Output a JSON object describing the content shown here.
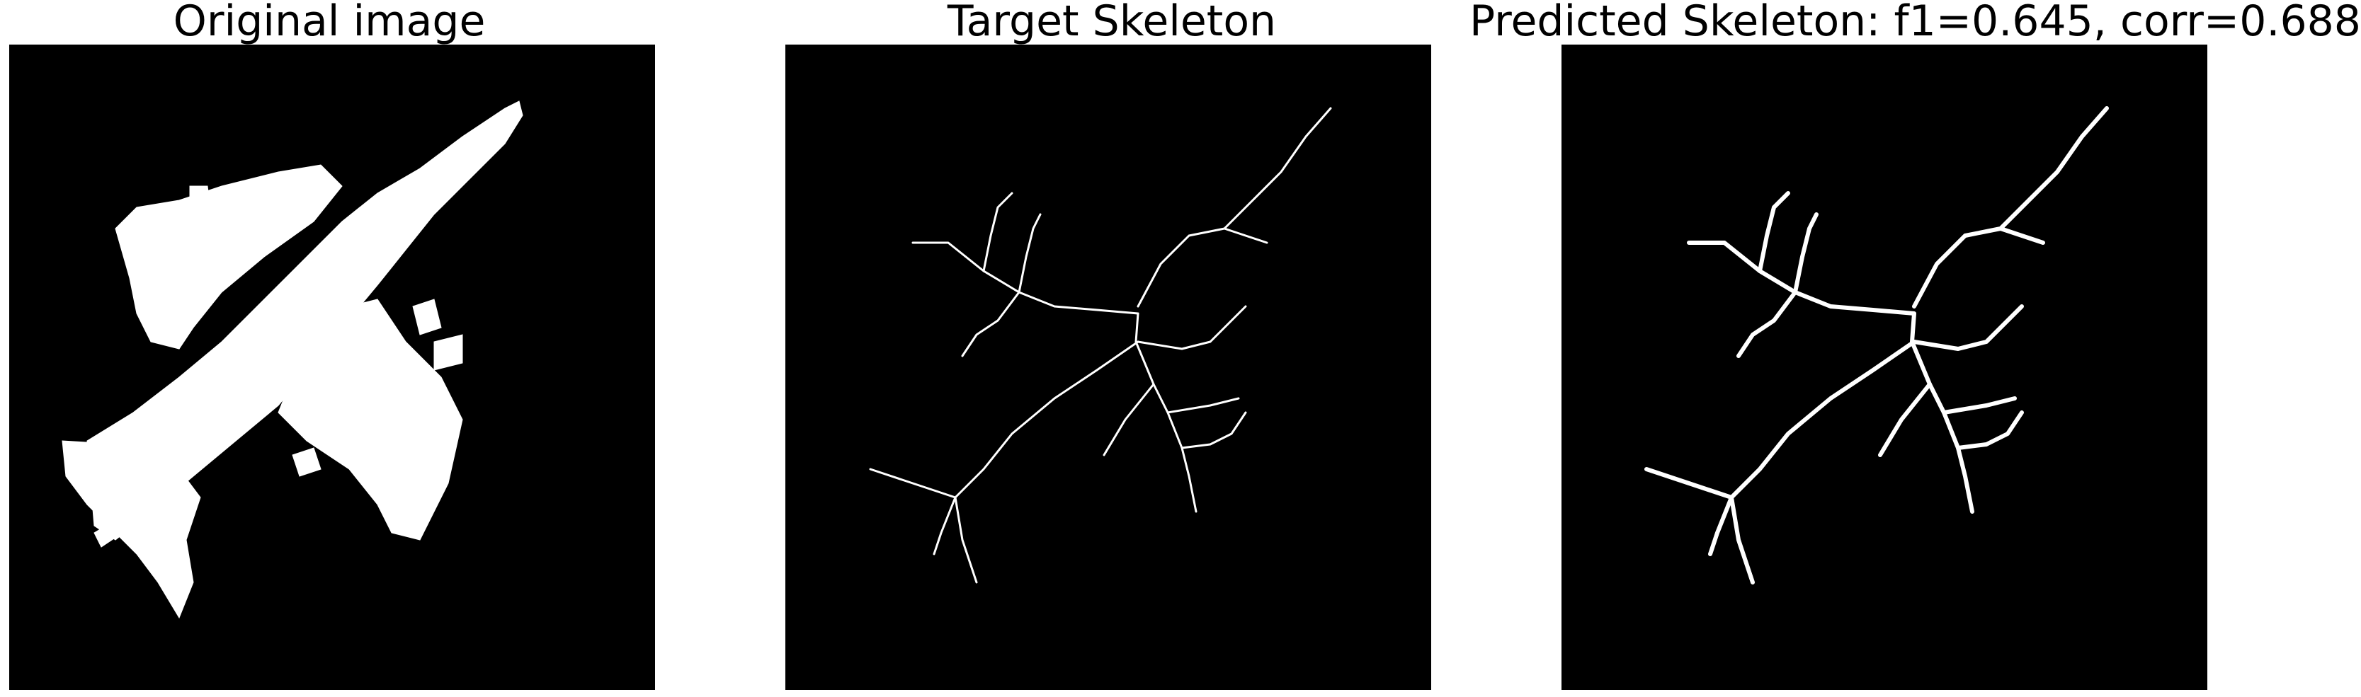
{
  "panels": [
    {
      "title": "Original image",
      "content": "airplane-silhouette"
    },
    {
      "title": "Target Skeleton",
      "content": "thin-skeleton"
    },
    {
      "title": "Predicted Skeleton: f1=0.645, corr=0.688",
      "content": "thick-skeleton"
    }
  ],
  "colors": {
    "background": "#000000",
    "foreground": "#ffffff",
    "page": "#ffffff"
  }
}
